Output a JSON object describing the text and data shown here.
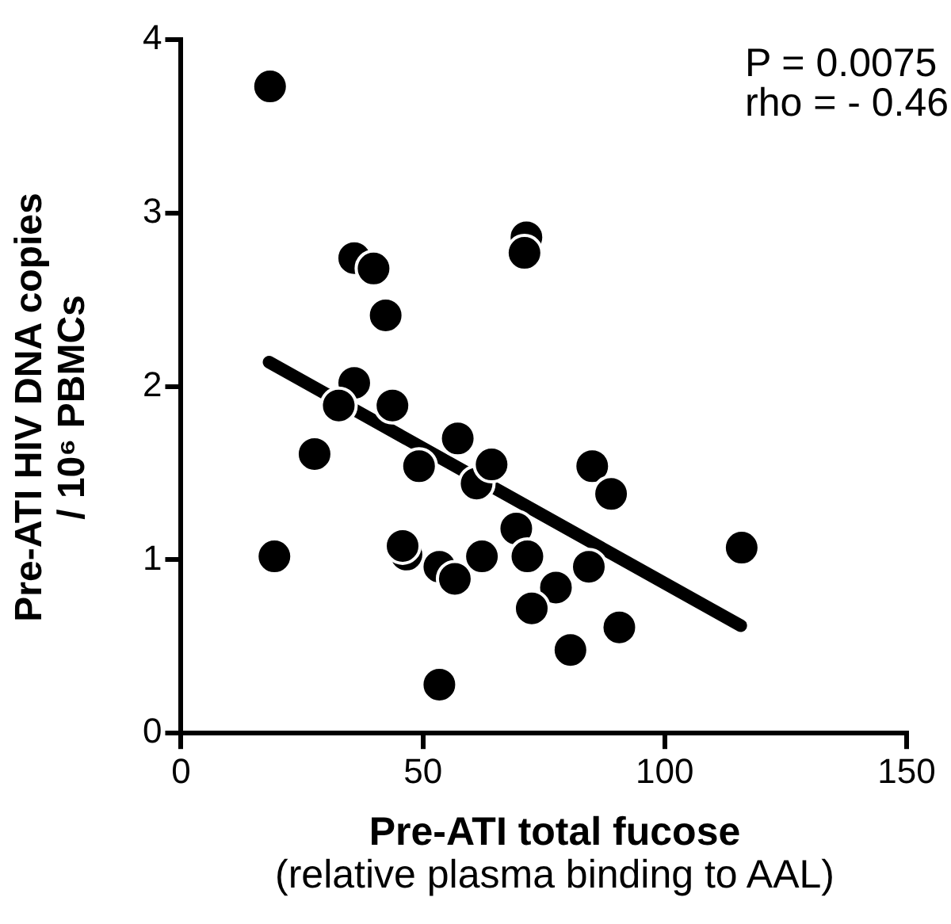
{
  "chart_data": {
    "type": "scatter",
    "xlabel": "Pre-ATI total fucose\n(relative plasma binding to AAL)",
    "ylabel": "Pre-ATI HIV DNA copies\n/ 10⁶ PBMCs",
    "annotations": [
      "P = 0.0075",
      "rho = - 0.46"
    ],
    "xlim": [
      0,
      150
    ],
    "xticks": [
      0,
      50,
      100,
      150
    ],
    "ylim": [
      0,
      4
    ],
    "yticks": [
      0,
      1,
      2,
      3,
      4
    ],
    "grid": false,
    "legend": false,
    "marker": "circle",
    "series": [
      {
        "type": "scatter",
        "color": "#000000",
        "x": [
          18.4,
          19.3,
          27.6,
          35.8,
          39.8,
          42.3,
          35.8,
          32.6,
          43.7,
          46.6,
          45.8,
          49.2,
          53.4,
          56.6,
          53.4,
          57.2,
          61.1,
          64.2,
          62.2,
          71.4,
          71.0,
          69.3,
          71.6,
          77.5,
          72.5,
          84.3,
          85.0,
          88.9,
          90.6,
          80.5,
          115.9
        ],
        "values": [
          3.73,
          1.02,
          1.61,
          2.74,
          2.68,
          2.41,
          2.02,
          1.89,
          1.89,
          1.03,
          1.08,
          1.54,
          0.96,
          0.89,
          0.28,
          1.7,
          1.44,
          1.55,
          1.02,
          2.86,
          2.77,
          1.18,
          1.02,
          0.84,
          0.72,
          0.96,
          1.54,
          1.38,
          0.61,
          0.48,
          1.07
        ]
      },
      {
        "type": "line",
        "color": "#000000",
        "x": [
          18.2,
          115.7
        ],
        "values": [
          2.14,
          0.62
        ],
        "marker": "none",
        "line_style": "solid"
      }
    ]
  }
}
